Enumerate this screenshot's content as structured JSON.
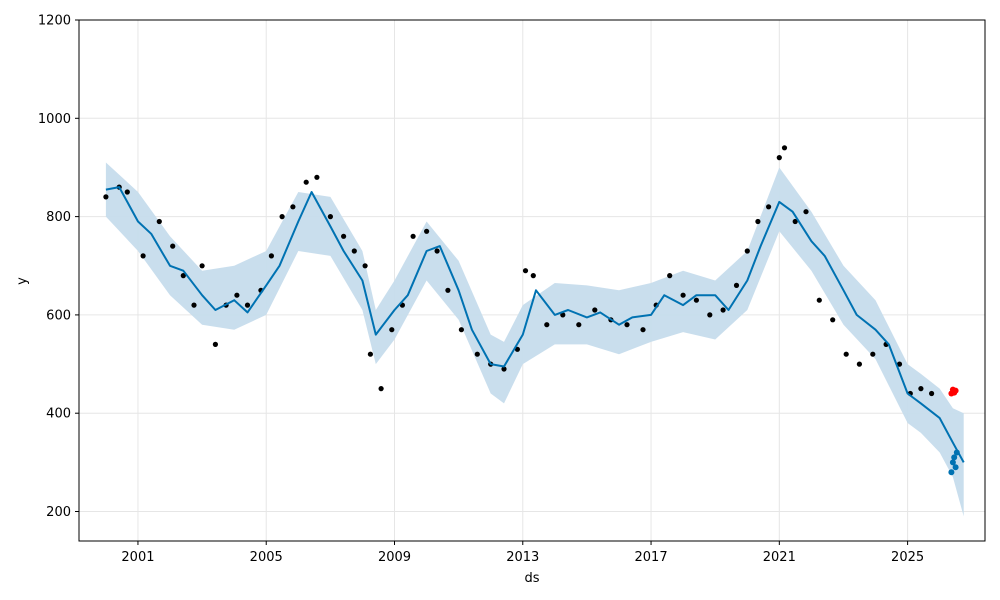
{
  "chart_data": {
    "type": "line",
    "title": "",
    "xlabel": "ds",
    "ylabel": "y",
    "xlim": [
      "1999-03-01",
      "2027-06-01"
    ],
    "ylim": [
      140,
      1200
    ],
    "x_ticks": [
      "2001",
      "2005",
      "2009",
      "2013",
      "2017",
      "2021",
      "2025"
    ],
    "y_ticks": [
      200,
      400,
      600,
      800,
      1000,
      1200
    ],
    "grid": true,
    "colors": {
      "observed": "#000000",
      "forecast_line": "#0072b2",
      "uncertainty_band": "#c6dcec",
      "highlight_points": "#ff0000",
      "grid": "#e6e6e6"
    },
    "series": [
      {
        "name": "observed",
        "style": "points",
        "x": [
          "2000-01-01",
          "2000-06-01",
          "2000-09-01",
          "2001-03-01",
          "2001-09-01",
          "2002-02-01",
          "2002-06-01",
          "2002-10-01",
          "2003-01-01",
          "2003-06-01",
          "2003-10-01",
          "2004-02-01",
          "2004-06-01",
          "2004-11-01",
          "2005-03-01",
          "2005-07-01",
          "2005-11-01",
          "2006-04-01",
          "2006-08-01",
          "2007-01-01",
          "2007-06-01",
          "2007-10-01",
          "2008-02-01",
          "2008-04-01",
          "2008-08-01",
          "2008-12-01",
          "2009-04-01",
          "2009-08-01",
          "2010-01-01",
          "2010-05-01",
          "2010-09-01",
          "2011-02-01",
          "2011-08-01",
          "2012-01-01",
          "2012-06-01",
          "2012-11-01",
          "2013-02-01",
          "2013-05-01",
          "2013-10-01",
          "2014-04-01",
          "2014-10-01",
          "2015-04-01",
          "2015-10-01",
          "2016-04-01",
          "2016-10-01",
          "2017-03-01",
          "2017-08-01",
          "2018-01-01",
          "2018-06-01",
          "2018-11-01",
          "2019-04-01",
          "2019-09-01",
          "2020-01-01",
          "2020-05-01",
          "2020-09-01",
          "2021-01-01",
          "2021-03-01",
          "2021-07-01",
          "2021-11-01",
          "2022-04-01",
          "2022-09-01",
          "2023-02-01",
          "2023-07-01",
          "2023-12-01",
          "2024-05-01",
          "2024-10-01",
          "2025-02-01",
          "2025-06-01",
          "2025-10-01"
        ],
        "y": [
          840,
          860,
          850,
          720,
          790,
          740,
          680,
          620,
          700,
          540,
          620,
          640,
          620,
          650,
          720,
          800,
          820,
          870,
          880,
          800,
          760,
          730,
          700,
          520,
          450,
          570,
          620,
          760,
          770,
          730,
          650,
          570,
          520,
          500,
          490,
          530,
          690,
          680,
          580,
          600,
          580,
          610,
          590,
          580,
          570,
          620,
          680,
          640,
          630,
          600,
          610,
          660,
          730,
          790,
          820,
          920,
          940,
          790,
          810,
          630,
          590,
          520,
          500,
          520,
          540,
          500,
          440,
          450,
          440
        ]
      },
      {
        "name": "forecast",
        "style": "line",
        "x": [
          "2000-01-01",
          "2000-06-01",
          "2001-01-01",
          "2001-06-01",
          "2002-01-01",
          "2002-06-01",
          "2003-01-01",
          "2003-06-01",
          "2004-01-01",
          "2004-06-01",
          "2005-01-01",
          "2005-06-01",
          "2006-01-01",
          "2006-06-01",
          "2007-01-01",
          "2007-06-01",
          "2008-01-01",
          "2008-06-01",
          "2009-01-01",
          "2009-06-01",
          "2010-01-01",
          "2010-06-01",
          "2011-01-01",
          "2011-06-01",
          "2012-01-01",
          "2012-06-01",
          "2013-01-01",
          "2013-06-01",
          "2014-01-01",
          "2014-06-01",
          "2015-01-01",
          "2015-06-01",
          "2016-01-01",
          "2016-06-01",
          "2017-01-01",
          "2017-06-01",
          "2018-01-01",
          "2018-06-01",
          "2019-01-01",
          "2019-06-01",
          "2020-01-01",
          "2020-06-01",
          "2021-01-01",
          "2021-06-01",
          "2022-01-01",
          "2022-06-01",
          "2023-01-01",
          "2023-06-01",
          "2024-01-01",
          "2024-06-01",
          "2025-01-01",
          "2025-06-01",
          "2026-01-01",
          "2026-06-01",
          "2026-10-01"
        ],
        "y": [
          855,
          860,
          790,
          765,
          700,
          690,
          640,
          610,
          630,
          605,
          660,
          700,
          790,
          850,
          780,
          730,
          670,
          560,
          610,
          640,
          730,
          740,
          650,
          570,
          500,
          495,
          560,
          650,
          600,
          610,
          595,
          605,
          580,
          595,
          600,
          640,
          620,
          640,
          640,
          610,
          670,
          740,
          830,
          810,
          750,
          720,
          650,
          600,
          570,
          540,
          440,
          420,
          390,
          340,
          300
        ]
      },
      {
        "name": "uncertainty_lower",
        "style": "band",
        "x": [
          "2000-01-01",
          "2001-01-01",
          "2002-01-01",
          "2003-01-01",
          "2004-01-01",
          "2005-01-01",
          "2006-01-01",
          "2007-01-01",
          "2008-01-01",
          "2008-06-01",
          "2009-01-01",
          "2010-01-01",
          "2011-01-01",
          "2012-01-01",
          "2012-06-01",
          "2013-01-01",
          "2014-01-01",
          "2015-01-01",
          "2016-01-01",
          "2017-01-01",
          "2018-01-01",
          "2019-01-01",
          "2020-01-01",
          "2021-01-01",
          "2022-01-01",
          "2023-01-01",
          "2024-01-01",
          "2025-01-01",
          "2025-06-01",
          "2026-01-01",
          "2026-06-01",
          "2026-10-01"
        ],
        "y": [
          800,
          730,
          640,
          580,
          570,
          600,
          730,
          720,
          610,
          500,
          550,
          670,
          590,
          440,
          420,
          500,
          540,
          540,
          520,
          545,
          565,
          550,
          610,
          770,
          690,
          580,
          510,
          380,
          360,
          320,
          270,
          190
        ]
      },
      {
        "name": "uncertainty_upper",
        "style": "band",
        "x": [
          "2000-01-01",
          "2001-01-01",
          "2002-01-01",
          "2003-01-01",
          "2004-01-01",
          "2005-01-01",
          "2006-01-01",
          "2007-01-01",
          "2008-01-01",
          "2008-06-01",
          "2009-01-01",
          "2010-01-01",
          "2011-01-01",
          "2012-01-01",
          "2012-06-01",
          "2013-01-01",
          "2014-01-01",
          "2015-01-01",
          "2016-01-01",
          "2017-01-01",
          "2018-01-01",
          "2019-01-01",
          "2020-01-01",
          "2021-01-01",
          "2022-01-01",
          "2023-01-01",
          "2024-01-01",
          "2025-01-01",
          "2025-06-01",
          "2026-01-01",
          "2026-06-01",
          "2026-10-01"
        ],
        "y": [
          910,
          850,
          760,
          690,
          700,
          730,
          850,
          840,
          730,
          610,
          670,
          790,
          710,
          560,
          545,
          620,
          665,
          660,
          650,
          665,
          690,
          670,
          730,
          900,
          810,
          700,
          630,
          500,
          480,
          450,
          410,
          400
        ]
      },
      {
        "name": "forecast_points",
        "style": "points",
        "x": [
          "2026-05-15",
          "2026-06-01",
          "2026-06-15",
          "2026-07-01",
          "2026-07-15"
        ],
        "y": [
          280,
          300,
          310,
          290,
          320
        ]
      },
      {
        "name": "recent_points",
        "style": "points",
        "x": [
          "2026-05-15",
          "2026-06-01",
          "2026-06-15",
          "2026-07-01"
        ],
        "y": [
          440,
          448,
          442,
          446
        ]
      }
    ]
  }
}
